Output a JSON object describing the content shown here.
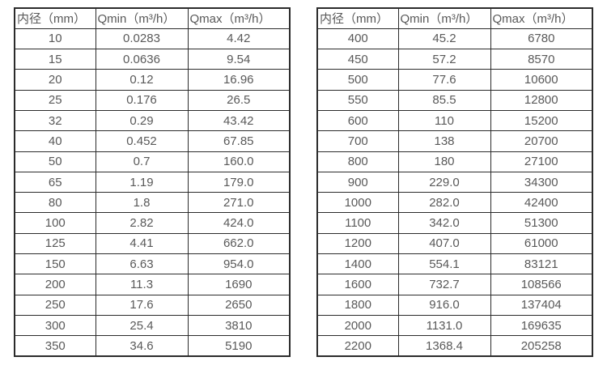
{
  "colors": {
    "background": "#ffffff",
    "border": "#2b2b2b",
    "text": "#595959"
  },
  "tables": [
    {
      "name": "flow-table-small-diameters",
      "headers": [
        "内径（mm）",
        "Qmin（m³/h）",
        "Qmax（m³/h）"
      ],
      "rows": [
        [
          "10",
          "0.0283",
          "4.42"
        ],
        [
          "15",
          "0.0636",
          "9.54"
        ],
        [
          "20",
          "0.12",
          "16.96"
        ],
        [
          "25",
          "0.176",
          "26.5"
        ],
        [
          "32",
          "0.29",
          "43.42"
        ],
        [
          "40",
          "0.452",
          "67.85"
        ],
        [
          "50",
          "0.7",
          "160.0"
        ],
        [
          "65",
          "1.19",
          "179.0"
        ],
        [
          "80",
          "1.8",
          "271.0"
        ],
        [
          "100",
          "2.82",
          "424.0"
        ],
        [
          "125",
          "4.41",
          "662.0"
        ],
        [
          "150",
          "6.63",
          "954.0"
        ],
        [
          "200",
          "11.3",
          "1690"
        ],
        [
          "250",
          "17.6",
          "2650"
        ],
        [
          "300",
          "25.4",
          "3810"
        ],
        [
          "350",
          "34.6",
          "5190"
        ]
      ]
    },
    {
      "name": "flow-table-large-diameters",
      "headers": [
        "内径（mm）",
        "Qmin（m³/h）",
        "Qmax（m³/h）"
      ],
      "rows": [
        [
          "400",
          "45.2",
          "6780"
        ],
        [
          "450",
          "57.2",
          "8570"
        ],
        [
          "500",
          "77.6",
          "10600"
        ],
        [
          "550",
          "85.5",
          "12800"
        ],
        [
          "600",
          "110",
          "15200"
        ],
        [
          "700",
          "138",
          "20700"
        ],
        [
          "800",
          "180",
          "27100"
        ],
        [
          "900",
          "229.0",
          "34300"
        ],
        [
          "1000",
          "282.0",
          "42400"
        ],
        [
          "1100",
          "342.0",
          "51300"
        ],
        [
          "1200",
          "407.0",
          "61000"
        ],
        [
          "1400",
          "554.1",
          "83121"
        ],
        [
          "1600",
          "732.7",
          "108566"
        ],
        [
          "1800",
          "916.0",
          "137404"
        ],
        [
          "2000",
          "1131.0",
          "169635"
        ],
        [
          "2200",
          "1368.4",
          "205258"
        ]
      ]
    }
  ]
}
